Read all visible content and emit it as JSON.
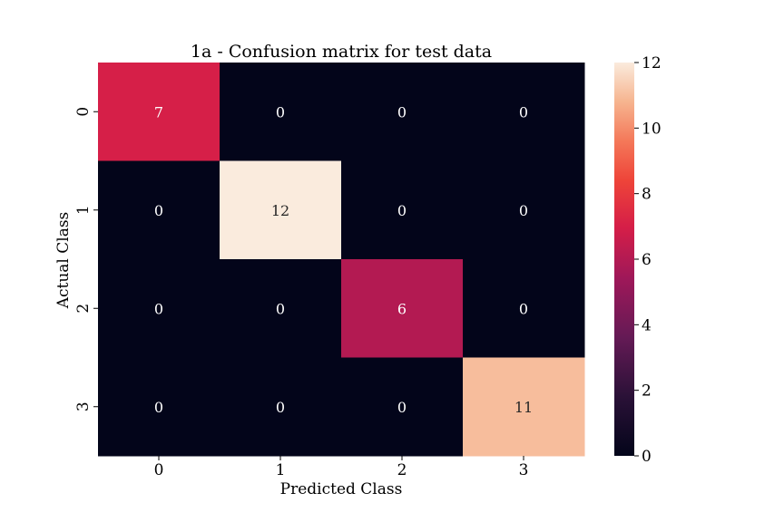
{
  "chart_data": {
    "type": "heatmap",
    "title": "1a - Confusion matrix for test data",
    "xlabel": "Predicted Class",
    "ylabel": "Actual Class",
    "x_categories": [
      "0",
      "1",
      "2",
      "3"
    ],
    "y_categories": [
      "0",
      "1",
      "2",
      "3"
    ],
    "values": [
      [
        7,
        0,
        0,
        0
      ],
      [
        0,
        12,
        0,
        0
      ],
      [
        0,
        0,
        6,
        0
      ],
      [
        0,
        0,
        0,
        11
      ]
    ],
    "colorbar": {
      "min": 0,
      "max": 12,
      "ticks": [
        0,
        2,
        4,
        6,
        8,
        10,
        12
      ],
      "colormap": "rocket"
    }
  }
}
